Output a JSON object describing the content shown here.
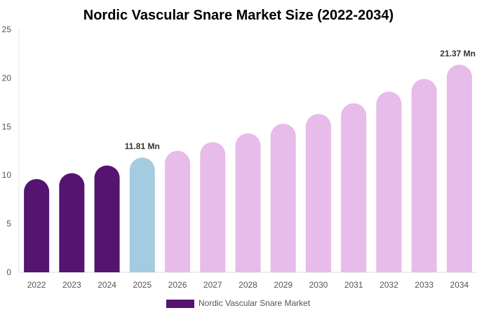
{
  "chart_data": {
    "type": "bar",
    "title": "Nordic Vascular Snare Market Size (2022-2034)",
    "xlabel": "",
    "ylabel": "",
    "ylim": [
      0,
      25
    ],
    "yticks": [
      "0",
      "5",
      "10",
      "15",
      "20",
      "25"
    ],
    "categories": [
      "2022",
      "2023",
      "2024",
      "2025",
      "2026",
      "2027",
      "2028",
      "2029",
      "2030",
      "2031",
      "2032",
      "2033",
      "2034"
    ],
    "series": [
      {
        "name": "Nordic Vascular Snare Market",
        "values": [
          9.6,
          10.2,
          11.0,
          11.81,
          12.5,
          13.4,
          14.3,
          15.3,
          16.3,
          17.4,
          18.6,
          19.9,
          21.37
        ]
      }
    ],
    "bar_colors": [
      "#541470",
      "#541470",
      "#541470",
      "#a5cbe0",
      "#e7bbea",
      "#e7bbea",
      "#e7bbea",
      "#e7bbea",
      "#e7bbea",
      "#e7bbea",
      "#e7bbea",
      "#e7bbea",
      "#e7bbea"
    ],
    "data_labels": [
      "",
      "",
      "",
      "11.81 Mn",
      "",
      "",
      "",
      "",
      "",
      "",
      "",
      "",
      "21.37 Mn"
    ],
    "legend": {
      "label": "Nordic Vascular Snare Market",
      "color": "#541470",
      "position": "bottom"
    },
    "grid": false
  }
}
